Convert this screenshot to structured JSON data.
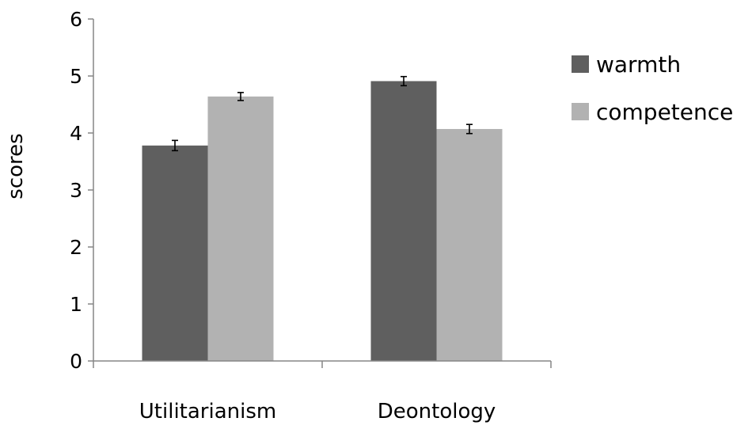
{
  "chart_data": {
    "type": "bar",
    "categories": [
      "Utilitarianism",
      "Deontology"
    ],
    "series": [
      {
        "name": "warmth",
        "color": "#5f5f5f",
        "values": [
          3.78,
          4.91
        ],
        "error": [
          0.09,
          0.08
        ]
      },
      {
        "name": "competence",
        "color": "#b2b2b2",
        "values": [
          4.64,
          4.07
        ],
        "error": [
          0.07,
          0.08
        ]
      }
    ],
    "xlabel": "",
    "ylabel": "scores",
    "ylim": [
      0,
      6
    ],
    "yticks": [
      "0",
      "1",
      "2",
      "3",
      "4",
      "5",
      "6"
    ],
    "grid": false,
    "legend_position": "right"
  }
}
